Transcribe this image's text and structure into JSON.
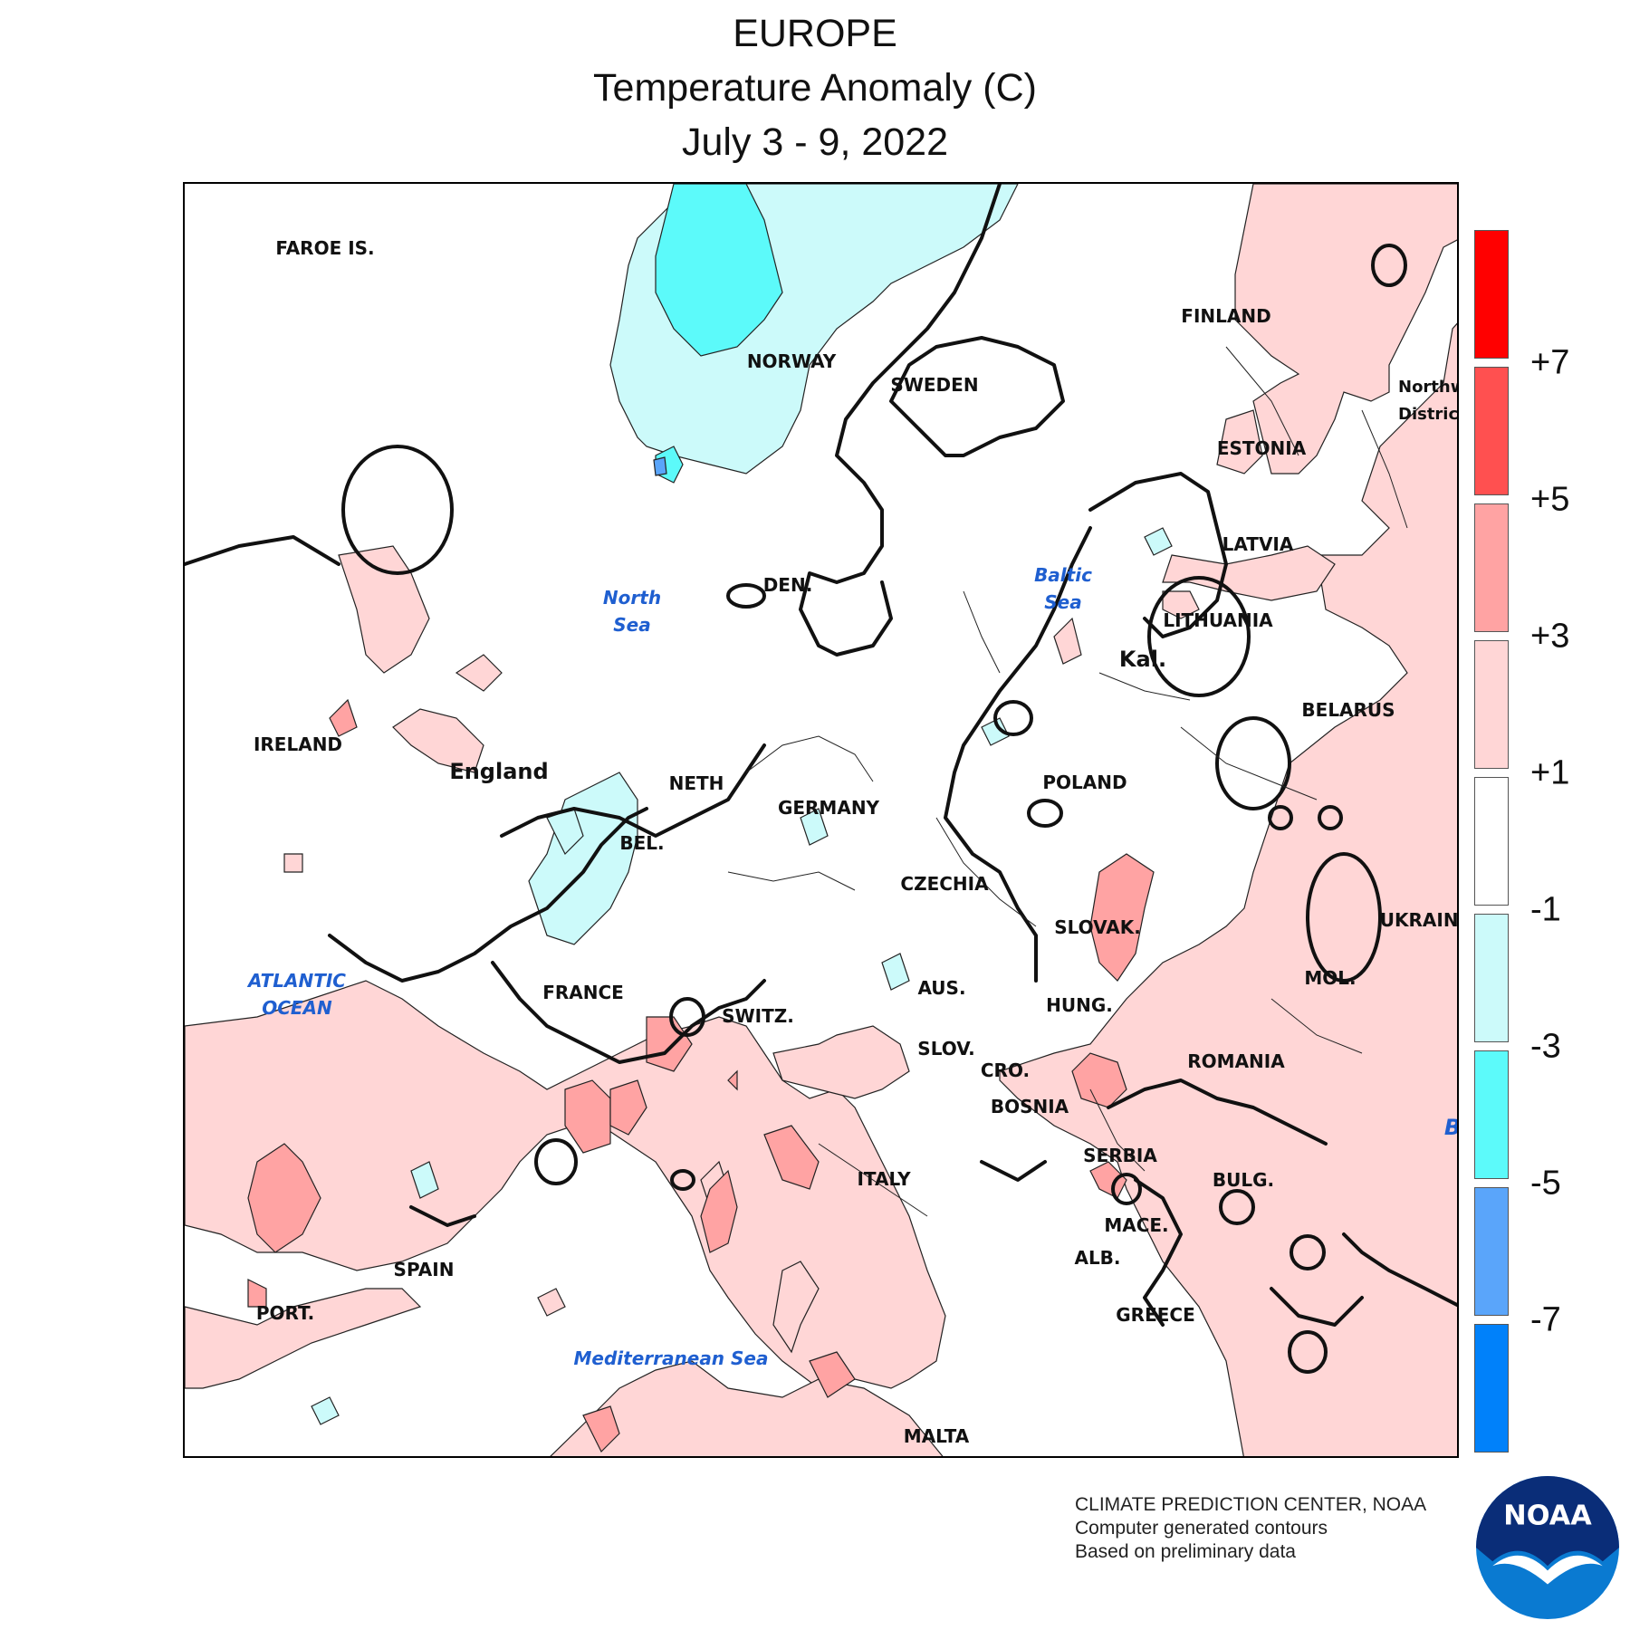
{
  "header": {
    "region": "EUROPE",
    "metric": "Temperature Anomaly (C)",
    "period": "July 3 - 9, 2022"
  },
  "map": {
    "countries": {
      "faroe": "FAROE IS.",
      "norway": "NORWAY",
      "sweden": "SWEDEN",
      "finland": "FINLAND",
      "estonia": "ESTONIA",
      "latvia": "LATVIA",
      "lithuania": "LITHUANIA",
      "kaliningrad": "Kal.",
      "belarus": "BELARUS",
      "northwest_district": "Northwest District",
      "ireland": "IRELAND",
      "england": "England",
      "denmark": "DEN.",
      "netherlands": "NETH",
      "belgium": "BEL.",
      "germany": "GERMANY",
      "poland": "POLAND",
      "czechia": "CZECHIA",
      "ukraine": "UKRAINE",
      "slovakia": "SLOVAK.",
      "moldova": "MOL.",
      "france": "FRANCE",
      "austria": "AUS.",
      "hungary": "HUNG.",
      "switzerland": "SWITZ.",
      "slovenia": "SLOV.",
      "croatia": "CRO.",
      "romania": "ROMANIA",
      "bosnia": "BOSNIA",
      "serbia": "SERBIA",
      "italy": "ITALY",
      "bulgaria": "BULG.",
      "macedonia": "MACE.",
      "albania": "ALB.",
      "spain": "SPAIN",
      "portugal": "PORT.",
      "greece": "GREECE",
      "malta": "MALTA"
    },
    "water_bodies": {
      "north_sea": [
        "North",
        "Sea"
      ],
      "baltic_sea": [
        "Baltic",
        "Sea"
      ],
      "atlantic": [
        "ATLANTIC",
        "OCEAN"
      ],
      "mediterranean": "Mediterranean Sea",
      "black_sea_partial": "B"
    }
  },
  "legend": {
    "colors": [
      "#ff0000",
      "#ff5050",
      "#ffa3a3",
      "#ffd6d6",
      "#ffffff",
      "#ccfafa",
      "#5cfafa",
      "#5aa5fa",
      "#0081fa"
    ],
    "labels": [
      "+7",
      "+5",
      "+3",
      "+1",
      "-1",
      "-3",
      "-5",
      "-7"
    ]
  },
  "credits": {
    "line1": "CLIMATE PREDICTION CENTER, NOAA",
    "line2": "Computer generated contours",
    "line3": "Based on preliminary data"
  },
  "logo": {
    "text": "NOAA",
    "icon": "noaa-logo-icon"
  }
}
